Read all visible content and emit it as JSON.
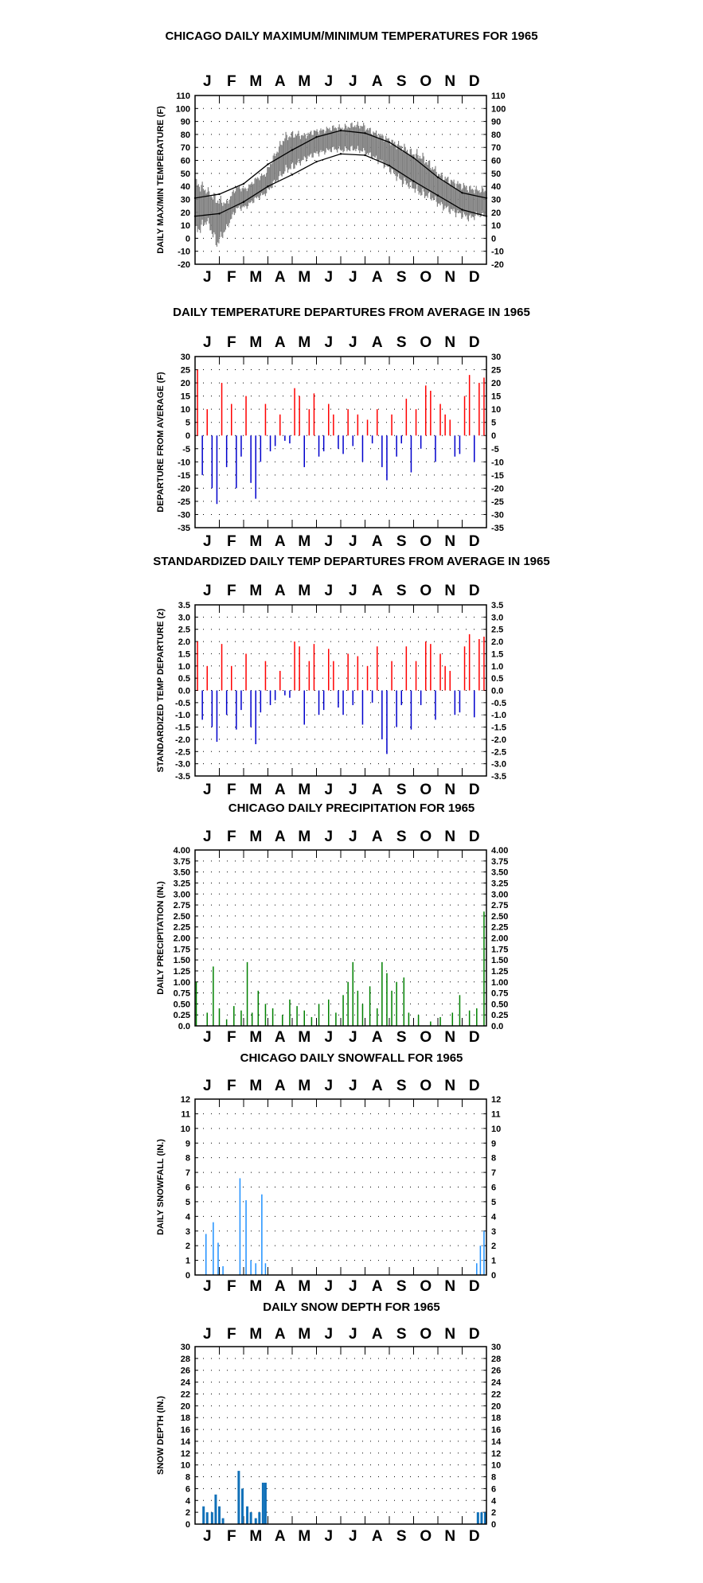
{
  "colors": {
    "positive": "#ff0000",
    "negative": "#0000cc",
    "precip": "#008000",
    "snowfall": "#1e90ff",
    "snowdepth": "#1070b8",
    "temp_series": "#808080",
    "normals": "#000000"
  },
  "months": [
    "J",
    "F",
    "M",
    "A",
    "M",
    "J",
    "J",
    "A",
    "S",
    "O",
    "N",
    "D"
  ],
  "chart_data": [
    {
      "type": "line",
      "title": "CHICAGO DAILY MAXIMUM/MINIMUM TEMPERATURES FOR 1965",
      "ylabel": "DAILY MAX/MIN TEMPERATURE (F)",
      "ylim": [
        -20,
        110
      ],
      "yticks": [
        "110",
        "100",
        "90",
        "80",
        "70",
        "60",
        "50",
        "40",
        "30",
        "20",
        "10",
        "0",
        "-10",
        "-20"
      ],
      "x_month_labels": [
        "J",
        "F",
        "M",
        "A",
        "M",
        "J",
        "J",
        "A",
        "S",
        "O",
        "N",
        "D"
      ],
      "grid": true,
      "series": [
        {
          "kind": "range",
          "x_month": [
            0.1,
            0.5,
            0.9,
            1.3,
            1.7,
            2.1,
            2.5,
            2.9,
            3.3,
            3.7,
            4.1,
            4.5,
            4.9,
            5.3,
            5.7,
            6.1,
            6.5,
            6.9,
            7.3,
            7.7,
            8.1,
            8.5,
            8.9,
            9.3,
            9.7,
            10.1,
            10.5,
            10.9,
            11.3,
            11.7
          ],
          "high": [
            48,
            40,
            35,
            30,
            42,
            40,
            48,
            52,
            68,
            82,
            84,
            82,
            85,
            86,
            88,
            88,
            90,
            90,
            85,
            82,
            78,
            75,
            70,
            68,
            60,
            52,
            48,
            45,
            42,
            40
          ],
          "low": [
            0,
            10,
            -10,
            5,
            20,
            22,
            28,
            32,
            40,
            48,
            52,
            58,
            62,
            64,
            66,
            65,
            66,
            64,
            60,
            55,
            48,
            40,
            36,
            30,
            28,
            22,
            18,
            15,
            12,
            15
          ]
        },
        {
          "name": "",
          "kind": "normal_high",
          "x_month": [
            0,
            1,
            2,
            3,
            4,
            5,
            6,
            7,
            8,
            9,
            10,
            11,
            12
          ],
          "values": [
            31,
            34,
            42,
            57,
            68,
            78,
            83,
            81,
            74,
            62,
            47,
            35,
            31
          ]
        },
        {
          "name": "",
          "kind": "normal_low",
          "x_month": [
            0,
            1,
            2,
            3,
            4,
            5,
            6,
            7,
            8,
            9,
            10,
            11,
            12
          ],
          "values": [
            17,
            19,
            28,
            40,
            49,
            59,
            65,
            64,
            56,
            44,
            33,
            22,
            17
          ]
        }
      ]
    },
    {
      "type": "bar",
      "title": "DAILY TEMPERATURE DEPARTURES FROM AVERAGE IN 1965",
      "ylabel": "DEPARTURE FROM AVERAGE (F)",
      "ylim": [
        -35,
        30
      ],
      "yticks": [
        "30",
        "25",
        "20",
        "15",
        "10",
        "5",
        "0",
        "-5",
        "-10",
        "-15",
        "-20",
        "-25",
        "-30",
        "-35"
      ],
      "x_month_labels": [
        "J",
        "F",
        "M",
        "A",
        "M",
        "J",
        "J",
        "A",
        "S",
        "O",
        "N",
        "D"
      ],
      "grid": true,
      "x_month": [
        0.1,
        0.3,
        0.5,
        0.7,
        0.9,
        1.1,
        1.3,
        1.5,
        1.7,
        1.9,
        2.1,
        2.3,
        2.5,
        2.7,
        2.9,
        3.1,
        3.3,
        3.5,
        3.7,
        3.9,
        4.1,
        4.3,
        4.5,
        4.7,
        4.9,
        5.1,
        5.3,
        5.5,
        5.7,
        5.9,
        6.1,
        6.3,
        6.5,
        6.7,
        6.9,
        7.1,
        7.3,
        7.5,
        7.7,
        7.9,
        8.1,
        8.3,
        8.5,
        8.7,
        8.9,
        9.1,
        9.3,
        9.5,
        9.7,
        9.9,
        10.1,
        10.3,
        10.5,
        10.7,
        10.9,
        11.1,
        11.3,
        11.5,
        11.7,
        11.9
      ],
      "values": [
        25,
        -15,
        10,
        -20,
        -26,
        20,
        -12,
        12,
        -20,
        -8,
        15,
        -18,
        -24,
        -10,
        12,
        -6,
        -4,
        8,
        -2,
        -3,
        18,
        15,
        -12,
        10,
        16,
        -8,
        -6,
        12,
        8,
        -5,
        -7,
        10,
        -4,
        8,
        -10,
        6,
        -3,
        10,
        -12,
        -17,
        8,
        -8,
        -3,
        14,
        -14,
        10,
        -5,
        19,
        17,
        -10,
        12,
        8,
        6,
        -8,
        -7,
        15,
        23,
        -10,
        20,
        22
      ]
    },
    {
      "type": "bar",
      "title": "STANDARDIZED DAILY TEMP DEPARTURES FROM AVERAGE IN 1965",
      "ylabel": "STANDARDIZED TEMP DEPARTURE (z)",
      "ylim": [
        -3.5,
        3.5
      ],
      "yticks": [
        "3.5",
        "3.0",
        "2.5",
        "2.0",
        "1.5",
        "1.0",
        "0.5",
        "0.0",
        "-0.5",
        "-1.0",
        "-1.5",
        "-2.0",
        "-2.5",
        "-3.0",
        "-3.5"
      ],
      "x_month_labels": [
        "J",
        "F",
        "M",
        "A",
        "M",
        "J",
        "J",
        "A",
        "S",
        "O",
        "N",
        "D"
      ],
      "grid": true,
      "x_month": [
        0.1,
        0.3,
        0.5,
        0.7,
        0.9,
        1.1,
        1.3,
        1.5,
        1.7,
        1.9,
        2.1,
        2.3,
        2.5,
        2.7,
        2.9,
        3.1,
        3.3,
        3.5,
        3.7,
        3.9,
        4.1,
        4.3,
        4.5,
        4.7,
        4.9,
        5.1,
        5.3,
        5.5,
        5.7,
        5.9,
        6.1,
        6.3,
        6.5,
        6.7,
        6.9,
        7.1,
        7.3,
        7.5,
        7.7,
        7.9,
        8.1,
        8.3,
        8.5,
        8.7,
        8.9,
        9.1,
        9.3,
        9.5,
        9.7,
        9.9,
        10.1,
        10.3,
        10.5,
        10.7,
        10.9,
        11.1,
        11.3,
        11.5,
        11.7,
        11.9
      ],
      "values": [
        2.0,
        -1.2,
        1.0,
        -1.5,
        -2.1,
        1.9,
        -1.0,
        1.0,
        -1.6,
        -0.8,
        1.5,
        -1.5,
        -2.2,
        -0.9,
        1.2,
        -0.6,
        -0.4,
        0.8,
        -0.2,
        -0.3,
        2.0,
        1.8,
        -1.4,
        1.2,
        1.9,
        -1.0,
        -0.8,
        1.7,
        1.2,
        -0.7,
        -1.0,
        1.5,
        -0.6,
        1.4,
        -1.4,
        1.0,
        -0.5,
        1.8,
        -2.0,
        -2.6,
        1.2,
        -1.5,
        -0.6,
        1.8,
        -1.6,
        1.2,
        -0.6,
        2.0,
        1.9,
        -1.2,
        1.5,
        1.0,
        0.8,
        -1.0,
        -0.9,
        1.8,
        2.3,
        -1.1,
        2.1,
        2.2
      ]
    },
    {
      "type": "bar",
      "title": "CHICAGO DAILY PRECIPITATION FOR 1965",
      "ylabel": "DAILY PRECIPITATION (IN.)",
      "ylim": [
        0,
        4
      ],
      "yticks": [
        "4.00",
        "3.75",
        "3.50",
        "3.25",
        "3.00",
        "2.75",
        "2.50",
        "2.25",
        "2.00",
        "1.75",
        "1.50",
        "1.25",
        "1.00",
        "0.75",
        "0.50",
        "0.25",
        "0.0"
      ],
      "x_month_labels": [
        "J",
        "F",
        "M",
        "A",
        "M",
        "J",
        "J",
        "A",
        "S",
        "O",
        "N",
        "D"
      ],
      "grid": true,
      "x_month": [
        0.05,
        0.5,
        0.75,
        1.0,
        1.3,
        1.6,
        1.9,
        2.15,
        2.35,
        2.6,
        2.9,
        3.2,
        3.6,
        3.9,
        4.2,
        4.5,
        4.8,
        5.1,
        5.5,
        5.8,
        6.1,
        6.3,
        6.5,
        6.7,
        6.9,
        7.2,
        7.5,
        7.7,
        7.9,
        8.1,
        8.3,
        8.6,
        8.8,
        9.2,
        9.7,
        10.1,
        10.6,
        10.9,
        11.3,
        11.6,
        11.9
      ],
      "values": [
        1.0,
        0.3,
        1.35,
        0.4,
        0.15,
        0.45,
        0.35,
        1.45,
        0.3,
        0.8,
        0.5,
        0.4,
        0.25,
        0.6,
        0.45,
        0.35,
        0.2,
        0.5,
        0.6,
        0.3,
        0.7,
        1.0,
        1.45,
        0.8,
        0.5,
        0.9,
        0.4,
        1.45,
        1.2,
        0.8,
        1.0,
        1.1,
        0.3,
        0.25,
        0.1,
        0.2,
        0.3,
        0.7,
        0.35,
        0.4,
        2.6
      ]
    },
    {
      "type": "bar",
      "title": "CHICAGO DAILY SNOWFALL FOR 1965",
      "ylabel": "DAILY SNOWFALL (IN.)",
      "ylim": [
        0,
        12
      ],
      "yticks": [
        "12",
        "11",
        "10",
        "9",
        "8",
        "7",
        "6",
        "5",
        "4",
        "3",
        "2",
        "1",
        "0"
      ],
      "x_month_labels": [
        "J",
        "F",
        "M",
        "A",
        "M",
        "J",
        "J",
        "A",
        "S",
        "O",
        "N",
        "D"
      ],
      "grid": true,
      "x_month": [
        0.45,
        0.75,
        0.95,
        1.15,
        1.85,
        2.1,
        2.3,
        2.5,
        2.75,
        2.9,
        11.6,
        11.75,
        11.9
      ],
      "values": [
        2.8,
        3.6,
        2.2,
        0.6,
        6.6,
        5.1,
        1.0,
        0.8,
        5.5,
        0.8,
        0.8,
        2.0,
        3.0
      ]
    },
    {
      "type": "bar",
      "title": "DAILY SNOW DEPTH FOR 1965",
      "ylabel": "SNOW DEPTH (IN.)",
      "ylim": [
        0,
        30
      ],
      "yticks": [
        "30",
        "28",
        "26",
        "24",
        "22",
        "20",
        "18",
        "16",
        "14",
        "12",
        "10",
        "8",
        "6",
        "4",
        "2",
        "0"
      ],
      "x_month_labels": [
        "J",
        "F",
        "M",
        "A",
        "M",
        "J",
        "J",
        "A",
        "S",
        "O",
        "N",
        "D"
      ],
      "grid": true,
      "x_month": [
        0.35,
        0.5,
        0.7,
        0.85,
        1.0,
        1.15,
        1.8,
        1.95,
        2.15,
        2.3,
        2.5,
        2.65,
        2.8,
        2.9,
        11.65,
        11.8,
        11.95
      ],
      "values": [
        3,
        2,
        2,
        5,
        3,
        1,
        9,
        6,
        3,
        2,
        1,
        2,
        7,
        7,
        2,
        2,
        2
      ]
    }
  ]
}
